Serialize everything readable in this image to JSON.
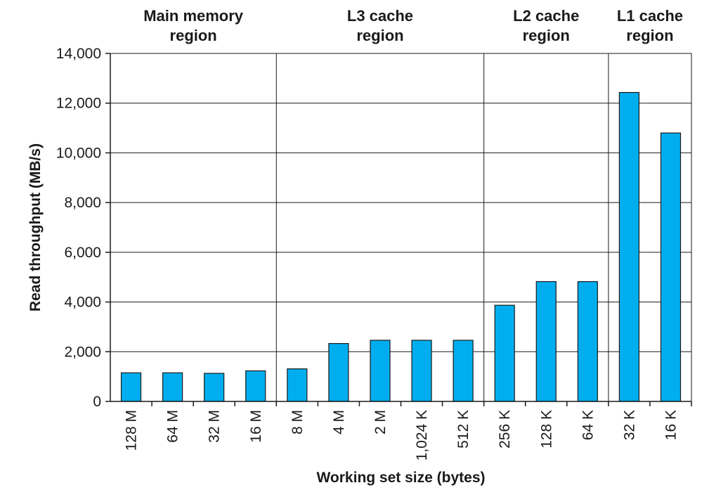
{
  "chart_data": {
    "type": "bar",
    "title": "",
    "xlabel": "Working set size (bytes)",
    "ylabel": "Read throughput (MB/s)",
    "ylim": [
      0,
      14000
    ],
    "yticks": [
      0,
      2000,
      4000,
      6000,
      8000,
      10000,
      12000,
      14000
    ],
    "ytick_labels": [
      "0",
      "2,000",
      "4,000",
      "6,000",
      "8,000",
      "10,000",
      "12,000",
      "14,000"
    ],
    "grid": "horizontal",
    "bar_color": "#00aeef",
    "categories": [
      "128 M",
      "64 M",
      "32 M",
      "16 M",
      "8 M",
      "4 M",
      "2 M",
      "1,024 K",
      "512 K",
      "256 K",
      "128 K",
      "64 K",
      "32 K",
      "16 K"
    ],
    "values": [
      1150,
      1150,
      1130,
      1230,
      1310,
      2330,
      2460,
      2460,
      2460,
      3870,
      4820,
      4820,
      12430,
      10800
    ],
    "regions": [
      {
        "label_line1": "Main memory",
        "label_line2": "region",
        "start": 0,
        "end": 3
      },
      {
        "label_line1": "L3 cache",
        "label_line2": "region",
        "start": 4,
        "end": 8
      },
      {
        "label_line1": "L2 cache",
        "label_line2": "region",
        "start": 9,
        "end": 11
      },
      {
        "label_line1": "L1 cache",
        "label_line2": "region",
        "start": 12,
        "end": 13
      }
    ]
  }
}
